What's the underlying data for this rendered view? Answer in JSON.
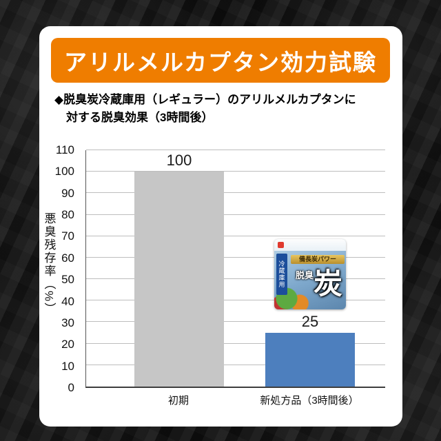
{
  "colors": {
    "banner_orange": "#ef7d00",
    "card_white": "#ffffff",
    "bar_gray": "#c6c6c6",
    "bar_blue": "#4d7fbe",
    "background_black": "#0a0a0a"
  },
  "banner": {
    "title": "アリルメルカプタン効力試験"
  },
  "subtitle": {
    "line1": "◆脱臭炭冷蔵庫用（レギュラー）のアリルメルカプタンに",
    "line2": "対する脱臭効果（3時間後）"
  },
  "chart_data": {
    "type": "bar",
    "title": "脱臭炭冷蔵庫用（レギュラー）のアリルメルカプタンに対する脱臭効果（3時間後）",
    "categories": [
      "初期",
      "新処方品（3時間後）"
    ],
    "values": [
      100,
      25
    ],
    "data_labels": [
      "100",
      "25"
    ],
    "xlabel": "",
    "ylabel": "悪臭残存率（%）",
    "ylim": [
      0,
      110
    ],
    "yticks": [
      0,
      10,
      20,
      30,
      40,
      50,
      60,
      70,
      80,
      90,
      100,
      110
    ],
    "grid": true,
    "legend": false,
    "bar_colors": [
      "#c6c6c6",
      "#4d7fbe"
    ]
  },
  "product": {
    "side_label": "冷蔵庫用",
    "ribbon": "備長炭パワー",
    "name_small": "脱臭",
    "name_big": "炭"
  }
}
